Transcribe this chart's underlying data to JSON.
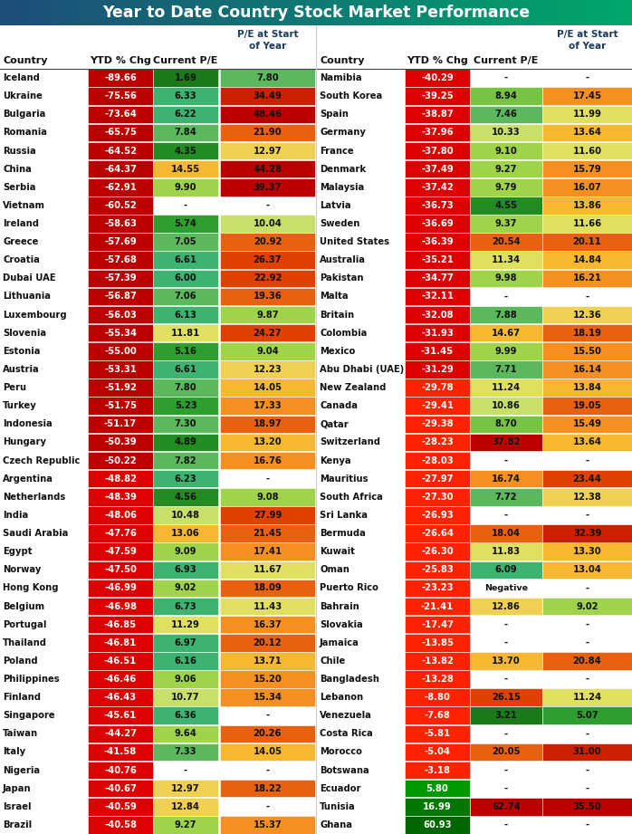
{
  "title": "Year to Date Country Stock Market Performance",
  "title_bg_left": "#1e4d7a",
  "title_bg_right": "#00a86b",
  "left_data": [
    [
      "Iceland",
      -89.66,
      1.69,
      7.8
    ],
    [
      "Ukraine",
      -75.56,
      6.33,
      34.49
    ],
    [
      "Bulgaria",
      -73.64,
      6.22,
      48.46
    ],
    [
      "Romania",
      -65.75,
      7.84,
      21.9
    ],
    [
      "Russia",
      -64.52,
      4.35,
      12.97
    ],
    [
      "China",
      -64.37,
      14.55,
      44.28
    ],
    [
      "Serbia",
      -62.91,
      9.9,
      39.37
    ],
    [
      "Vietnam",
      -60.52,
      null,
      null
    ],
    [
      "Ireland",
      -58.63,
      5.74,
      10.04
    ],
    [
      "Greece",
      -57.69,
      7.05,
      20.92
    ],
    [
      "Croatia",
      -57.68,
      6.61,
      26.37
    ],
    [
      "Dubai UAE",
      -57.39,
      6.0,
      22.92
    ],
    [
      "Lithuania",
      -56.87,
      7.06,
      19.36
    ],
    [
      "Luxembourg",
      -56.03,
      6.13,
      9.87
    ],
    [
      "Slovenia",
      -55.34,
      11.81,
      24.27
    ],
    [
      "Estonia",
      -55.0,
      5.16,
      9.04
    ],
    [
      "Austria",
      -53.31,
      6.61,
      12.23
    ],
    [
      "Peru",
      -51.92,
      7.8,
      14.05
    ],
    [
      "Turkey",
      -51.75,
      5.23,
      17.33
    ],
    [
      "Indonesia",
      -51.17,
      7.3,
      18.97
    ],
    [
      "Hungary",
      -50.39,
      4.89,
      13.2
    ],
    [
      "Czech Republic",
      -50.22,
      7.82,
      16.76
    ],
    [
      "Argentina",
      -48.82,
      6.23,
      null
    ],
    [
      "Netherlands",
      -48.39,
      4.56,
      9.08
    ],
    [
      "India",
      -48.06,
      10.48,
      27.99
    ],
    [
      "Saudi Arabia",
      -47.76,
      13.06,
      21.45
    ],
    [
      "Egypt",
      -47.59,
      9.09,
      17.41
    ],
    [
      "Norway",
      -47.5,
      6.93,
      11.67
    ],
    [
      "Hong Kong",
      -46.99,
      9.02,
      18.09
    ],
    [
      "Belgium",
      -46.98,
      6.73,
      11.43
    ],
    [
      "Portugal",
      -46.85,
      11.29,
      16.37
    ],
    [
      "Thailand",
      -46.81,
      6.97,
      20.12
    ],
    [
      "Poland",
      -46.51,
      6.16,
      13.71
    ],
    [
      "Philippines",
      -46.46,
      9.06,
      15.2
    ],
    [
      "Finland",
      -46.43,
      10.77,
      15.34
    ],
    [
      "Singapore",
      -45.61,
      6.36,
      null
    ],
    [
      "Taiwan",
      -44.27,
      9.64,
      20.26
    ],
    [
      "Italy",
      -41.58,
      7.33,
      14.05
    ],
    [
      "Nigeria",
      -40.76,
      null,
      null
    ],
    [
      "Japan",
      -40.67,
      12.97,
      18.22
    ],
    [
      "Israel",
      -40.59,
      12.84,
      null
    ],
    [
      "Brazil",
      -40.58,
      9.27,
      15.37
    ]
  ],
  "right_data": [
    [
      "Namibia",
      -40.29,
      null,
      null
    ],
    [
      "South Korea",
      -39.25,
      8.94,
      17.45
    ],
    [
      "Spain",
      -38.87,
      7.46,
      11.99
    ],
    [
      "Germany",
      -37.96,
      10.33,
      13.64
    ],
    [
      "France",
      -37.8,
      9.1,
      11.6
    ],
    [
      "Denmark",
      -37.49,
      9.27,
      15.79
    ],
    [
      "Malaysia",
      -37.42,
      9.79,
      16.07
    ],
    [
      "Latvia",
      -36.73,
      4.55,
      13.86
    ],
    [
      "Sweden",
      -36.69,
      9.37,
      11.66
    ],
    [
      "United States",
      -36.39,
      20.54,
      20.11
    ],
    [
      "Australia",
      -35.21,
      11.34,
      14.84
    ],
    [
      "Pakistan",
      -34.77,
      9.98,
      16.21
    ],
    [
      "Malta",
      -32.11,
      null,
      null
    ],
    [
      "Britain",
      -32.08,
      7.88,
      12.36
    ],
    [
      "Colombia",
      -31.93,
      14.67,
      18.19
    ],
    [
      "Mexico",
      -31.45,
      9.99,
      15.5
    ],
    [
      "Abu Dhabi (UAE)",
      -31.29,
      7.71,
      16.14
    ],
    [
      "New Zealand",
      -29.78,
      11.24,
      13.84
    ],
    [
      "Canada",
      -29.41,
      10.86,
      19.05
    ],
    [
      "Qatar",
      -29.38,
      8.7,
      15.49
    ],
    [
      "Switzerland",
      -28.23,
      37.82,
      13.64
    ],
    [
      "Kenya",
      -28.03,
      null,
      null
    ],
    [
      "Mauritius",
      -27.97,
      16.74,
      23.44
    ],
    [
      "South Africa",
      -27.3,
      7.72,
      12.38
    ],
    [
      "Sri Lanka",
      -26.93,
      null,
      null
    ],
    [
      "Bermuda",
      -26.64,
      18.04,
      32.39
    ],
    [
      "Kuwait",
      -26.3,
      11.83,
      13.3
    ],
    [
      "Oman",
      -25.83,
      6.09,
      13.04
    ],
    [
      "Puerto Rico",
      -23.23,
      "Negative",
      null
    ],
    [
      "Bahrain",
      -21.41,
      12.86,
      9.02
    ],
    [
      "Slovakia",
      -17.47,
      null,
      null
    ],
    [
      "Jamaica",
      -13.85,
      null,
      null
    ],
    [
      "Chile",
      -13.82,
      13.7,
      20.84
    ],
    [
      "Bangladesh",
      -13.28,
      null,
      null
    ],
    [
      "Lebanon",
      -8.8,
      26.15,
      11.24
    ],
    [
      "Venezuela",
      -7.68,
      3.21,
      5.07
    ],
    [
      "Costa Rica",
      -5.81,
      null,
      null
    ],
    [
      "Morocco",
      -5.04,
      20.05,
      31.0
    ],
    [
      "Botswana",
      -3.18,
      null,
      null
    ],
    [
      "Ecuador",
      5.8,
      null,
      null
    ],
    [
      "Tunisia",
      16.99,
      62.74,
      35.5
    ],
    [
      "Ghana",
      60.93,
      null,
      null
    ]
  ]
}
